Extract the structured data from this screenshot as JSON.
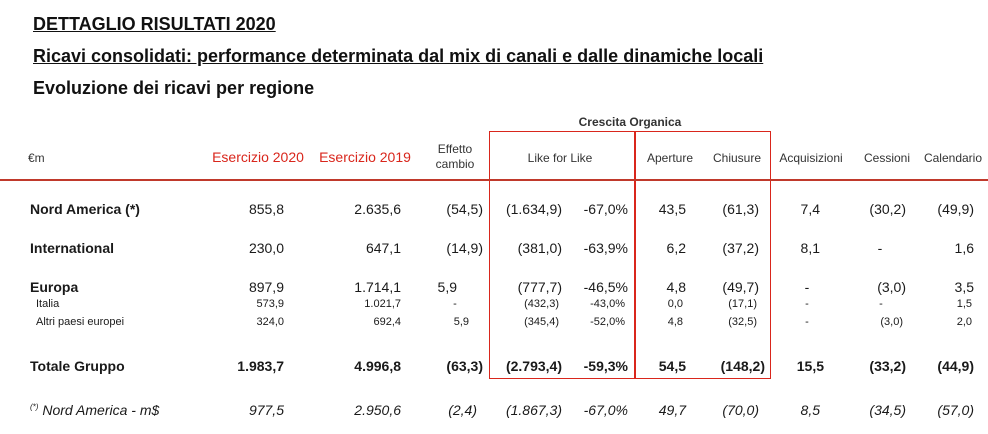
{
  "headings": {
    "title": "DETTAGLIO RISULTATI 2020",
    "subtitle": "Ricavi consolidati: performance determinata dal mix di canali e dalle dinamiche locali",
    "section": "Evoluzione dei ricavi per regione"
  },
  "table": {
    "group_header": "Crescita Organica",
    "columns": {
      "unit": "€m",
      "fy2020": "Esercizio 2020",
      "fy2019": "Esercizio 2019",
      "fx_line1": "Effetto",
      "fx_line2": "cambio",
      "lfl": "Like for Like",
      "openings": "Aperture",
      "closures": "Chiusure",
      "acquisitions": "Acquisizioni",
      "disposals": "Cessioni",
      "calendar": "Calendario"
    },
    "rows": [
      {
        "label": "Nord America (*)",
        "fy2020": "855,8",
        "fy2019": "2.635,6",
        "fx": "(54,5)",
        "lfl_abs": "(1.634,9)",
        "lfl_pct": "-67,0%",
        "open": "43,5",
        "close": "(61,3)",
        "acq": "7,4",
        "disp": "(30,2)",
        "cal": "(49,9)"
      },
      {
        "label": "International",
        "fy2020": "230,0",
        "fy2019": "647,1",
        "fx": "(14,9)",
        "lfl_abs": "(381,0)",
        "lfl_pct": "-63,9%",
        "open": "6,2",
        "close": "(37,2)",
        "acq": "8,1",
        "disp": "-",
        "cal": "1,6"
      },
      {
        "label": "Europa",
        "fy2020": "897,9",
        "fy2019": "1.714,1",
        "fx": "5,9",
        "lfl_abs": "(777,7)",
        "lfl_pct": "-46,5%",
        "open": "4,8",
        "close": "(49,7)",
        "acq": "-",
        "disp": "(3,0)",
        "cal": "3,5"
      },
      {
        "label": "Italia",
        "fy2020": "573,9",
        "fy2019": "1.021,7",
        "fx": "-",
        "lfl_abs": "(432,3)",
        "lfl_pct": "-43,0%",
        "open": "0,0",
        "close": "(17,1)",
        "acq": "-",
        "disp": "-",
        "cal": "1,5"
      },
      {
        "label": "Altri paesi europei",
        "fy2020": "324,0",
        "fy2019": "692,4",
        "fx": "5,9",
        "lfl_abs": "(345,4)",
        "lfl_pct": "-52,0%",
        "open": "4,8",
        "close": "(32,5)",
        "acq": "-",
        "disp": "(3,0)",
        "cal": "2,0"
      },
      {
        "label": "Totale Gruppo",
        "fy2020": "1.983,7",
        "fy2019": "4.996,8",
        "fx": "(63,3)",
        "lfl_abs": "(2.793,4)",
        "lfl_pct": "-59,3%",
        "open": "54,5",
        "close": "(148,2)",
        "acq": "15,5",
        "disp": "(33,2)",
        "cal": "(44,9)"
      },
      {
        "label": "Nord America - m$",
        "fy2020": "977,5",
        "fy2019": "2.950,6",
        "fx": "(2,4)",
        "lfl_abs": "(1.867,3)",
        "lfl_pct": "-67,0%",
        "open": "49,7",
        "close": "(70,0)",
        "acq": "8,5",
        "disp": "(34,5)",
        "cal": "(57,0)"
      }
    ],
    "footnote_marker": "(*)"
  },
  "colors": {
    "accent": "#d9261c",
    "rule": "#c0392b"
  }
}
